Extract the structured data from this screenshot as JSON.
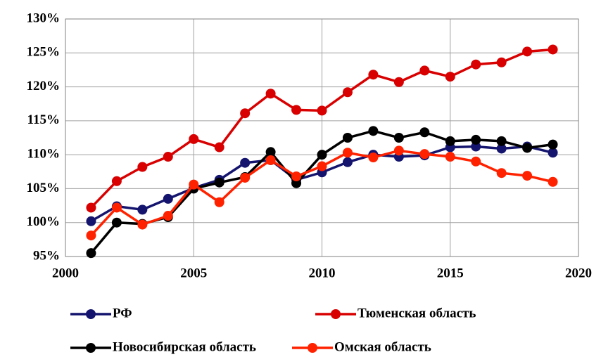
{
  "chart_data": {
    "type": "line",
    "x": [
      2001,
      2002,
      2003,
      2004,
      2005,
      2006,
      2007,
      2008,
      2009,
      2010,
      2011,
      2012,
      2013,
      2014,
      2015,
      2016,
      2017,
      2018,
      2019
    ],
    "xlim": [
      2000,
      2020
    ],
    "xticks": [
      2000,
      2005,
      2010,
      2015,
      2020
    ],
    "ylim": [
      95,
      130
    ],
    "yticks": [
      {
        "value": 95,
        "label": "95%"
      },
      {
        "value": 100,
        "label": "100%"
      },
      {
        "value": 105,
        "label": "105%"
      },
      {
        "value": 110,
        "label": "110%"
      },
      {
        "value": 115,
        "label": "115%"
      },
      {
        "value": 120,
        "label": "120%"
      },
      {
        "value": 125,
        "label": "125%"
      },
      {
        "value": 130,
        "label": "130%"
      }
    ],
    "grid": true,
    "legend": "bottom",
    "series": [
      {
        "name": "РФ",
        "color": "#14146e",
        "values": [
          100.2,
          102.4,
          101.9,
          103.5,
          105.1,
          106.3,
          108.8,
          109.2,
          106.3,
          107.4,
          108.9,
          110.0,
          109.7,
          109.9,
          111.1,
          111.2,
          110.9,
          111.2,
          110.3
        ]
      },
      {
        "name": "Тюменская область",
        "color": "#d80000",
        "values": [
          102.2,
          106.1,
          108.2,
          109.7,
          112.3,
          111.1,
          116.1,
          119.0,
          116.6,
          116.5,
          119.2,
          121.8,
          120.7,
          122.4,
          121.5,
          123.3,
          123.6,
          125.2,
          125.5
        ]
      },
      {
        "name": "Новосибирская область",
        "color": "#000000",
        "values": [
          95.5,
          100.0,
          99.8,
          100.8,
          105.0,
          105.9,
          106.7,
          110.4,
          105.8,
          110.0,
          112.5,
          113.5,
          112.5,
          113.3,
          112.0,
          112.2,
          112.0,
          111.0,
          111.5
        ]
      },
      {
        "name": "Омская область",
        "color": "#ff2200",
        "values": [
          98.1,
          102.2,
          99.7,
          101.0,
          105.6,
          103.0,
          106.6,
          109.2,
          106.8,
          108.3,
          110.3,
          109.6,
          110.6,
          110.1,
          109.7,
          109.0,
          107.3,
          106.9,
          106.0
        ]
      }
    ]
  }
}
